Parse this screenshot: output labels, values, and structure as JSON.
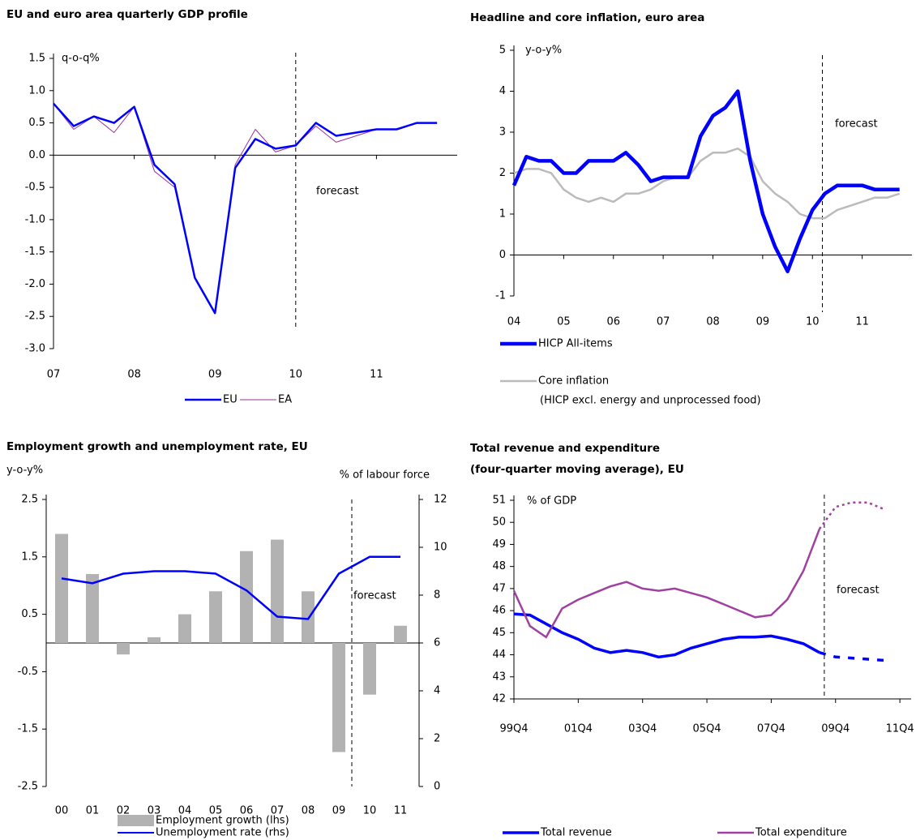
{
  "chart_data": [
    {
      "type": "line",
      "title": "EU and euro area quarterly GDP profile",
      "y_label": "q-o-q%",
      "annotation": "forecast",
      "forecast_x": 2010,
      "x": [
        2007,
        2007.25,
        2007.5,
        2007.75,
        2008,
        2008.25,
        2008.5,
        2008.75,
        2009,
        2009.25,
        2009.5,
        2009.75,
        2010,
        2010.25,
        2010.5,
        2010.75,
        2011,
        2011.25,
        2011.5,
        2011.75
      ],
      "xlim": [
        2007,
        2012
      ],
      "xticks": [
        {
          "value": 2007,
          "label": "07"
        },
        {
          "value": 2008,
          "label": "08"
        },
        {
          "value": 2009,
          "label": "09"
        },
        {
          "value": 2010,
          "label": "10"
        },
        {
          "value": 2011,
          "label": "11"
        }
      ],
      "ylim": [
        -3,
        1.5
      ],
      "yticks": [
        1.5,
        {
          "value": 1,
          "label": "1.0"
        },
        0.5,
        {
          "value": 0,
          "label": "0.0"
        },
        -0.5,
        {
          "value": -1,
          "label": "-1.0"
        },
        -1.5,
        {
          "value": -2,
          "label": "-2.0"
        },
        -2.5,
        {
          "value": -3,
          "label": "-3.0"
        }
      ],
      "series": [
        {
          "name": "EU",
          "color": "#0000ff",
          "values": [
            0.8,
            0.45,
            0.6,
            0.5,
            0.75,
            -0.15,
            -0.45,
            -1.9,
            -2.45,
            -0.2,
            0.25,
            0.1,
            0.15,
            0.5,
            0.3,
            0.35,
            0.4,
            0.4,
            0.5,
            0.5
          ]
        },
        {
          "name": "EA",
          "color": "#993399",
          "values": [
            0.8,
            0.4,
            0.6,
            0.35,
            0.75,
            -0.25,
            -0.5,
            -1.9,
            -2.45,
            -0.15,
            0.4,
            0.05,
            0.15,
            0.45,
            0.2,
            0.3,
            0.4,
            0.4,
            0.5,
            0.5
          ]
        }
      ]
    },
    {
      "type": "line",
      "title": "Headline and core inflation, euro area",
      "y_label": "y-o-y%",
      "annotation": "forecast",
      "forecast_x": 2010.2,
      "legend_note": "(HICP excl. energy and unprocessed food)",
      "x": [
        2004,
        2004.25,
        2004.5,
        2004.75,
        2005,
        2005.25,
        2005.5,
        2005.75,
        2006,
        2006.25,
        2006.5,
        2006.75,
        2007,
        2007.25,
        2007.5,
        2007.75,
        2008,
        2008.25,
        2008.5,
        2008.75,
        2009,
        2009.25,
        2009.5,
        2009.75,
        2010,
        2010.25,
        2010.5,
        2010.75,
        2011,
        2011.25,
        2011.5,
        2011.75
      ],
      "xlim": [
        2004,
        2012
      ],
      "xticks": [
        {
          "value": 2004,
          "label": "04"
        },
        {
          "value": 2005,
          "label": "05"
        },
        {
          "value": 2006,
          "label": "06"
        },
        {
          "value": 2007,
          "label": "07"
        },
        {
          "value": 2008,
          "label": "08"
        },
        {
          "value": 2009,
          "label": "09"
        },
        {
          "value": 2010,
          "label": "10"
        },
        {
          "value": 2011,
          "label": "11"
        }
      ],
      "ylim": [
        -1,
        5
      ],
      "yticks": [
        -1,
        0,
        1,
        2,
        3,
        4,
        5
      ],
      "series": [
        {
          "name": "HICP All-items",
          "color": "#0000ff",
          "values": [
            1.7,
            2.4,
            2.3,
            2.3,
            2.0,
            2.0,
            2.3,
            2.3,
            2.3,
            2.5,
            2.2,
            1.8,
            1.9,
            1.9,
            1.9,
            2.9,
            3.4,
            3.6,
            4.0,
            2.3,
            1.0,
            0.2,
            -0.4,
            0.4,
            1.1,
            1.5,
            1.7,
            1.7,
            1.7,
            1.6,
            1.6,
            1.6
          ]
        },
        {
          "name": "Core inflation",
          "color": "#bbbbbb",
          "values": [
            2.0,
            2.1,
            2.1,
            2.0,
            1.6,
            1.4,
            1.3,
            1.4,
            1.3,
            1.5,
            1.5,
            1.6,
            1.8,
            1.9,
            1.9,
            2.3,
            2.5,
            2.5,
            2.6,
            2.4,
            1.8,
            1.5,
            1.3,
            1.0,
            0.9,
            0.9,
            1.1,
            1.2,
            1.3,
            1.4,
            1.4,
            1.5
          ]
        }
      ]
    },
    {
      "type": "bar",
      "title": "Employment growth and unemployment rate, EU",
      "y_label": "y-o-y%",
      "y2_label": "% of labour force",
      "annotation": "forecast",
      "categories": [
        "00",
        "01",
        "02",
        "03",
        "04",
        "05",
        "06",
        "07",
        "08",
        "09",
        "10",
        "11"
      ],
      "ylim": [
        -2.5,
        2.5
      ],
      "yticks": [
        2.5,
        1.5,
        0.5,
        -0.5,
        -1.5,
        -2.5
      ],
      "y2lim": [
        0,
        12
      ],
      "y2ticks": [
        12,
        10,
        8,
        6,
        4,
        2,
        0
      ],
      "series": [
        {
          "name": "Employment growth (lhs)",
          "type": "bar",
          "color": "#b2b2b2",
          "values": [
            1.9,
            1.2,
            -0.2,
            0.1,
            0.5,
            0.9,
            1.6,
            1.8,
            0.9,
            -1.9,
            -0.9,
            0.3
          ]
        },
        {
          "name": "Unemployment rate (rhs)",
          "type": "line",
          "axis": "y2",
          "color": "#0000ff",
          "values": [
            8.7,
            8.5,
            8.9,
            9.0,
            9.0,
            8.9,
            8.2,
            7.1,
            7.0,
            8.9,
            9.6,
            9.6
          ]
        }
      ]
    },
    {
      "type": "line",
      "title": "Total revenue and expenditure",
      "subtitle": "(four-quarter moving average), EU",
      "y_label": "% of GDP",
      "annotation": "forecast",
      "forecast_x": 2009.4,
      "x": [
        1999.75,
        2000.25,
        2000.75,
        2001.25,
        2001.75,
        2002.25,
        2002.75,
        2003.25,
        2003.75,
        2004.25,
        2004.75,
        2005.25,
        2005.75,
        2006.25,
        2006.75,
        2007.25,
        2007.75,
        2008.25,
        2008.75,
        2009.25,
        2009.75,
        2010.25,
        2010.75,
        2011.25,
        2011.75
      ],
      "xlim": [
        1999.75,
        2012.1
      ],
      "xticks": [
        {
          "value": 1999.75,
          "label": "99Q4"
        },
        {
          "value": 2001.75,
          "label": "01Q4"
        },
        {
          "value": 2003.75,
          "label": "03Q4"
        },
        {
          "value": 2005.75,
          "label": "05Q4"
        },
        {
          "value": 2007.75,
          "label": "07Q4"
        },
        {
          "value": 2009.75,
          "label": "09Q4"
        },
        {
          "value": 2011.75,
          "label": "11Q4"
        }
      ],
      "ylim": [
        42,
        51
      ],
      "yticks": [
        42,
        43,
        44,
        45,
        46,
        47,
        48,
        49,
        50,
        51
      ],
      "series": [
        {
          "name": "Total revenue",
          "color": "#0000ff",
          "values": [
            45.85,
            45.8,
            45.4,
            45.0,
            44.7,
            44.3,
            44.1,
            44.2,
            44.1,
            43.9,
            44.0,
            44.3,
            44.5,
            44.7,
            44.8,
            44.8,
            44.85,
            44.7,
            44.5,
            44.1,
            43.9,
            43.85,
            43.8,
            43.75,
            null
          ]
        },
        {
          "name": "Total expenditure",
          "color": "#a040a0",
          "values": [
            46.9,
            45.3,
            44.8,
            46.1,
            46.5,
            46.8,
            47.1,
            47.3,
            47.0,
            46.9,
            47.0,
            46.8,
            46.6,
            46.3,
            46.0,
            45.7,
            45.8,
            46.5,
            47.8,
            49.7,
            50.7,
            50.9,
            50.9,
            50.6,
            null
          ]
        }
      ]
    }
  ]
}
